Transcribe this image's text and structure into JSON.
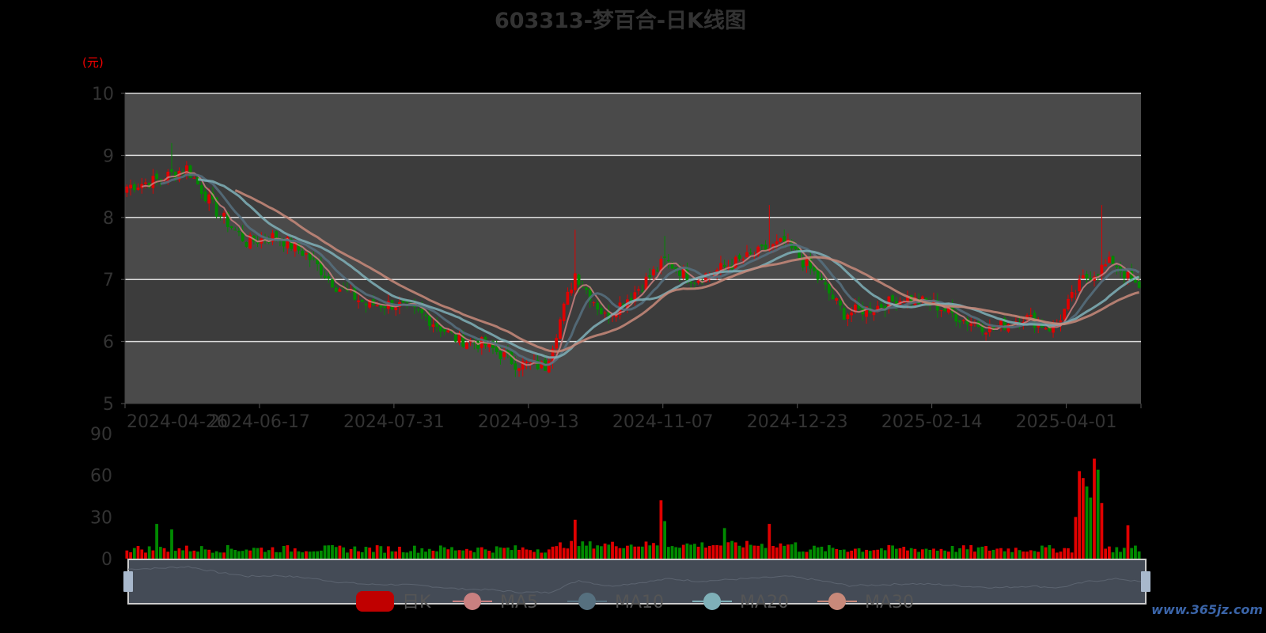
{
  "title": "603313-梦百合-日K线图",
  "watermark": "www.365jz.com",
  "chart_data": {
    "type": "candlestick",
    "title": "603313-梦百合-日K线图",
    "y_unit_label": "(元)",
    "ylim": [
      5,
      10
    ],
    "y_ticks": [
      "5",
      "6",
      "7",
      "8",
      "9",
      "10"
    ],
    "x_tick_labels": [
      "2024-04-26",
      "2024-06-17",
      "2024-07-31",
      "2024-09-13",
      "2024-11-07",
      "2024-12-23",
      "2025-02-14",
      "2025-04-01"
    ],
    "candle_count": 272,
    "candles_per_x_label": 36,
    "close_every_8_candles": [
      8.5,
      8.6,
      8.8,
      8.1,
      7.6,
      7.7,
      7.4,
      6.9,
      6.6,
      6.6,
      6.4,
      6.05,
      5.95,
      5.65,
      5.6,
      7.1,
      6.4,
      6.8,
      7.3,
      7.0,
      7.2,
      7.4,
      7.6,
      7.1,
      6.45,
      6.55,
      6.7,
      6.6,
      6.35,
      6.2,
      6.4,
      6.2,
      7.0,
      7.3,
      6.75
    ],
    "price_spikes": [
      {
        "candle": 12,
        "high": 9.2
      },
      {
        "candle": 120,
        "high": 7.8
      },
      {
        "candle": 144,
        "high": 7.7
      },
      {
        "candle": 172,
        "high": 8.2
      },
      {
        "candle": 261,
        "high": 8.2
      }
    ],
    "volume": {
      "ylim": [
        0,
        90
      ],
      "y_ticks": [
        "0",
        "30",
        "60",
        "90"
      ],
      "base": 7,
      "spikes": [
        {
          "candle": 8,
          "value": 25
        },
        {
          "candle": 12,
          "value": 21
        },
        {
          "candle": 120,
          "value": 28
        },
        {
          "candle": 143,
          "value": 42
        },
        {
          "candle": 144,
          "value": 27
        },
        {
          "candle": 160,
          "value": 22
        },
        {
          "candle": 172,
          "value": 25
        },
        {
          "candle": 254,
          "value": 30
        },
        {
          "candle": 255,
          "value": 63
        },
        {
          "candle": 256,
          "value": 58
        },
        {
          "candle": 257,
          "value": 52
        },
        {
          "candle": 258,
          "value": 44
        },
        {
          "candle": 259,
          "value": 72
        },
        {
          "candle": 260,
          "value": 64
        },
        {
          "candle": 261,
          "value": 40
        },
        {
          "candle": 268,
          "value": 24
        }
      ]
    },
    "legend": [
      "日K",
      "MA5",
      "MA10",
      "MA20",
      "MA30"
    ],
    "legend_placement": "bottom",
    "colors": {
      "up": "#e00000",
      "down": "#008a00",
      "MA5": "#c98080",
      "MA10": "#56707f",
      "MA20": "#7fb0b8",
      "MA30": "#c8897a",
      "legend_k": "#c00000"
    },
    "grid": true
  }
}
